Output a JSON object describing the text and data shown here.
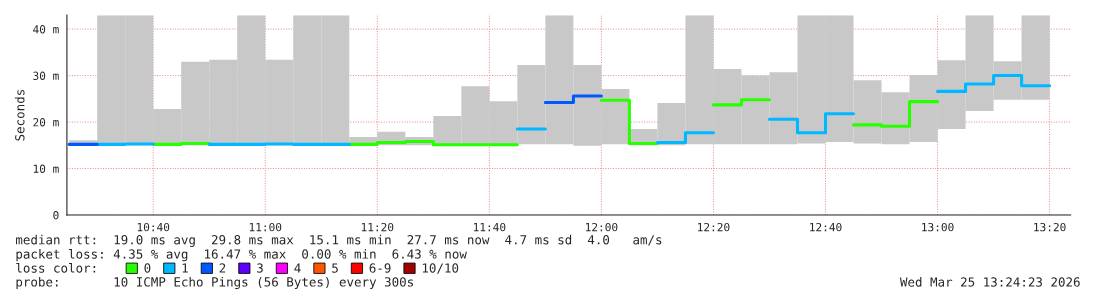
{
  "chart_data": {
    "type": "bar",
    "ylabel": "Seconds",
    "legend_title": "loss color:",
    "legend": "bottom",
    "grid": true,
    "x": [
      10.4583,
      10.5417,
      10.625,
      10.7083,
      10.7917,
      10.875,
      10.9583,
      11.0417,
      11.125,
      11.2083,
      11.2917,
      11.375,
      11.4583,
      11.5417,
      11.625,
      11.7083,
      11.7917,
      11.875,
      11.9583,
      12.0417,
      12.125,
      12.2083,
      12.2917,
      12.375,
      12.4583,
      12.5417,
      12.625,
      12.7083,
      12.7917,
      12.875,
      12.9583,
      13.0417,
      13.125,
      13.2083,
      13.2917
    ],
    "xlim": [
      10.41,
      13.396
    ],
    "xticks": [
      {
        "value": 10.6667,
        "label": "10:40"
      },
      {
        "value": 11.0,
        "label": "11:00"
      },
      {
        "value": 11.3333,
        "label": "11:20"
      },
      {
        "value": 11.6667,
        "label": "11:40"
      },
      {
        "value": 12.0,
        "label": "12:00"
      },
      {
        "value": 12.3333,
        "label": "12:20"
      },
      {
        "value": 12.6667,
        "label": "12:40"
      },
      {
        "value": 13.0,
        "label": "13:00"
      },
      {
        "value": 13.3333,
        "label": "13:20"
      }
    ],
    "ylim": [
      0,
      43
    ],
    "yticks": [
      0,
      {
        "value": 10,
        "label": "10 m"
      },
      {
        "value": 20,
        "label": "20 m"
      },
      {
        "value": 30,
        "label": "30 m"
      },
      {
        "value": 40,
        "label": "40 m"
      }
    ],
    "series": [
      {
        "color": "#c8c8c8",
        "base": [
          15.0,
          15.0,
          15.0,
          15.0,
          15.0,
          15.0,
          15.0,
          15.0,
          15.0,
          15.0,
          15.0,
          15.0,
          15.0,
          15.0,
          15.0,
          15.0,
          15.2,
          15.2,
          14.9,
          15.2,
          15.0,
          15.0,
          15.2,
          15.2,
          15.2,
          15.2,
          15.4,
          15.7,
          15.4,
          15.2,
          15.7,
          18.5,
          22.4,
          24.8,
          24.8
        ],
        "values": [
          1.1,
          28.0,
          28.0,
          7.8,
          18.0,
          18.4,
          28.0,
          18.4,
          28.0,
          28.0,
          1.8,
          2.9,
          1.8,
          6.3,
          12.7,
          9.5,
          17.1,
          27.8,
          17.4,
          11.9,
          3.5,
          9.1,
          27.8,
          16.2,
          14.8,
          15.5,
          27.6,
          27.3,
          13.6,
          11.2,
          14.4,
          14.8,
          20.6,
          8.3,
          18.2
        ]
      },
      {
        "type": "step",
        "name": "0",
        "color": "#26ff00",
        "x": [
          10.6667,
          10.75,
          10.8333,
          null,
          11.25,
          11.3333,
          11.4167,
          11.5,
          11.5833,
          11.6667,
          11.75,
          null,
          12.0,
          12.0833,
          12.1667,
          null,
          12.3333,
          12.4167,
          12.5,
          null,
          12.75,
          12.8333,
          12.9167,
          13.0
        ],
        "values": [
          15.2,
          15.4,
          15.4,
          null,
          15.2,
          15.6,
          15.8,
          15.1,
          15.1,
          15.1,
          15.1,
          null,
          24.7,
          15.4,
          15.4,
          null,
          23.7,
          24.8,
          24.8,
          null,
          19.4,
          19.1,
          24.4,
          24.4
        ]
      },
      {
        "type": "step",
        "name": "1",
        "color": "#00b8ff",
        "x": [
          10.5,
          10.5833,
          10.6667,
          null,
          10.8333,
          10.9167,
          11.0,
          11.0833,
          11.1667,
          11.25,
          null,
          11.75,
          11.8333,
          null,
          12.1667,
          12.25,
          12.3333,
          null,
          12.5,
          12.5833,
          12.6667,
          12.75,
          null,
          13.0,
          13.0833,
          13.1667,
          13.25,
          13.3333
        ],
        "values": [
          15.2,
          15.3,
          15.3,
          null,
          15.2,
          15.2,
          15.3,
          15.2,
          15.2,
          15.2,
          null,
          18.5,
          18.5,
          null,
          15.6,
          17.7,
          17.7,
          null,
          20.6,
          17.7,
          21.8,
          21.8,
          null,
          26.6,
          28.2,
          30.0,
          27.8,
          27.8
        ]
      },
      {
        "type": "step",
        "name": "2",
        "color": "#0059ff",
        "x": [
          10.4167,
          10.5,
          null,
          11.8333,
          11.9167,
          12.0
        ],
        "values": [
          15.2,
          15.2,
          null,
          24.2,
          25.6,
          25.6
        ]
      },
      {
        "type": "step",
        "name": "3",
        "color": "#5e00ff",
        "values": [
          null,
          null,
          null,
          null,
          null,
          null,
          null,
          null,
          null,
          null,
          null,
          null,
          null,
          null,
          null,
          null,
          null,
          null,
          null,
          null,
          null,
          null,
          null,
          null,
          null,
          null,
          null,
          null,
          null,
          null,
          null,
          null,
          null,
          null,
          null
        ]
      },
      {
        "type": "step",
        "name": "4",
        "color": "#ff00ff",
        "values": [
          null,
          null,
          null,
          null,
          null,
          null,
          null,
          null,
          null,
          null,
          null,
          null,
          null,
          null,
          null,
          null,
          null,
          null,
          null,
          null,
          null,
          null,
          null,
          null,
          null,
          null,
          null,
          null,
          null,
          null,
          null,
          null,
          null,
          null,
          null
        ]
      },
      {
        "type": "step",
        "name": "5",
        "color": "#ff5500",
        "values": [
          null,
          null,
          null,
          null,
          null,
          null,
          null,
          null,
          null,
          null,
          null,
          null,
          null,
          null,
          null,
          null,
          null,
          null,
          null,
          null,
          null,
          null,
          null,
          null,
          null,
          null,
          null,
          null,
          null,
          null,
          null,
          null,
          null,
          null,
          null
        ]
      },
      {
        "type": "step",
        "name": "6-9",
        "color": "#ff0000",
        "values": [
          null,
          null,
          null,
          null,
          null,
          null,
          null,
          null,
          null,
          null,
          null,
          null,
          null,
          null,
          null,
          null,
          null,
          null,
          null,
          null,
          null,
          null,
          null,
          null,
          null,
          null,
          null,
          null,
          null,
          null,
          null,
          null,
          null,
          null,
          null
        ]
      },
      {
        "type": "step",
        "name": "10/10",
        "color": "#a10000",
        "values": [
          null,
          null,
          null,
          null,
          null,
          null,
          null,
          null,
          null,
          null,
          null,
          null,
          null,
          null,
          null,
          null,
          null,
          null,
          null,
          null,
          null,
          null,
          null,
          null,
          null,
          null,
          null,
          null,
          null,
          null,
          null,
          null,
          null,
          null,
          null
        ]
      }
    ],
    "annotations": [
      "median rtt:  19.0 ms avg  29.8 ms max  15.1 ms min  27.7 ms now  4.7 ms sd  4.0   am/s",
      "packet loss: 4.35 % avg  16.47 % max  0.00 % min  6.43 % now",
      "probe:       10 ICMP Echo Pings (56 Bytes) every 300s",
      "Wed Mar 25 13:24:23 2026"
    ]
  }
}
